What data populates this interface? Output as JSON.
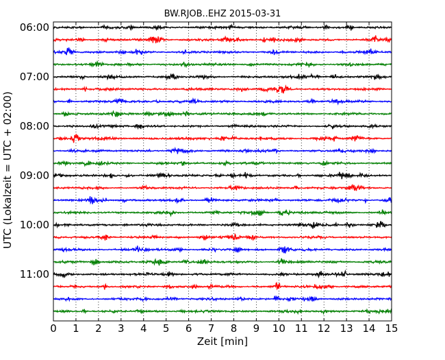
{
  "chart_data": {
    "type": "line",
    "title": "BW.RJOB..EHZ 2015-03-31",
    "xlabel": "Zeit  [min]",
    "ylabel": "UTC (Lokalzeit = UTC + 02:00)",
    "xlim": [
      0,
      15
    ],
    "x_ticks": [
      0,
      1,
      2,
      3,
      4,
      5,
      6,
      7,
      8,
      9,
      10,
      11,
      12,
      13,
      14,
      15
    ],
    "x_tick_labels": [
      "0",
      "1",
      "2",
      "3",
      "4",
      "5",
      "6",
      "7",
      "8",
      "9",
      "10",
      "11",
      "12",
      "13",
      "14",
      "15"
    ],
    "y_tick_labels": [
      {
        "label": "06:00",
        "trace_index": 0
      },
      {
        "label": "07:00",
        "trace_index": 4
      },
      {
        "label": "08:00",
        "trace_index": 8
      },
      {
        "label": "09:00",
        "trace_index": 12
      },
      {
        "label": "10:00",
        "trace_index": 16
      },
      {
        "label": "11:00",
        "trace_index": 20
      }
    ],
    "trace_interval_min": 15,
    "trace_count": 24,
    "trace_colors": [
      "#000000",
      "#ff0000",
      "#0000ff",
      "#007f00"
    ],
    "grid": {
      "x": true,
      "style": "dotted"
    }
  }
}
